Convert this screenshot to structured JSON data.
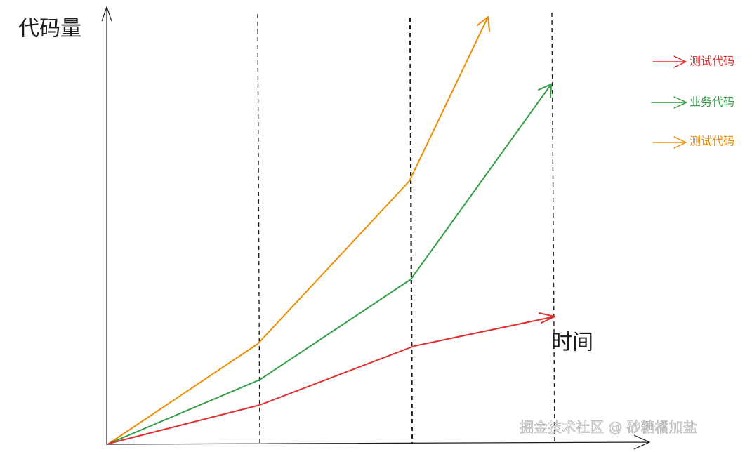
{
  "axes": {
    "y_label": "代码量",
    "x_label": "时间"
  },
  "legend": [
    {
      "label": "测试代码"
    },
    {
      "label": "业务代码"
    },
    {
      "label": "测试代码"
    }
  ],
  "watermark": "掘金技术社区 @ 砂糖橘加盐"
}
